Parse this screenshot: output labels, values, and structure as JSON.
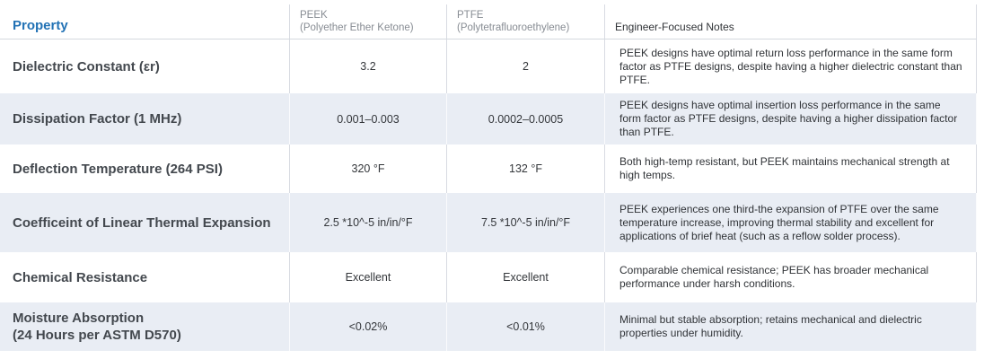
{
  "accent_color": "#2272b5",
  "stripe_color": "#e9edf4",
  "table": {
    "columns": [
      {
        "label": "Property"
      },
      {
        "label": "PEEK",
        "sublabel": "(Polyether Ether Ketone)"
      },
      {
        "label": "PTFE",
        "sublabel": "(Polytetrafluoroethylene)"
      },
      {
        "label": "Engineer-Focused Notes"
      }
    ],
    "rows": [
      {
        "property": "Dielectric Constant (εr)",
        "peek": "3.2",
        "ptfe": "2",
        "notes": "PEEK designs have optimal return loss performance in the same form factor as PTFE designs, despite having a higher dielectric constant than PTFE."
      },
      {
        "property": "Dissipation Factor (1 MHz)",
        "peek": "0.001–0.003",
        "ptfe": "0.0002–0.0005",
        "notes": "PEEK designs have optimal insertion loss performance in the same form factor as PTFE designs, despite having a higher dissipation factor than PTFE."
      },
      {
        "property": "Deflection Temperature (264 PSI)",
        "peek": "320 °F",
        "ptfe": "132 °F",
        "notes": "Both high-temp resistant, but PEEK maintains mechanical strength at high temps."
      },
      {
        "property": "Coefficeint of Linear Thermal Expansion",
        "peek": "2.5 *10^-5 in/in/°F",
        "ptfe": "7.5 *10^-5 in/in/°F",
        "notes": "PEEK experiences one third-the expansion of PTFE over the same temperature increase, improving thermal stability and excellent for applications of brief heat (such as a reflow solder process)."
      },
      {
        "property": "Chemical Resistance",
        "peek": "Excellent",
        "ptfe": "Excellent",
        "notes": "Comparable chemical resistance; PEEK has broader mechanical performance under harsh conditions."
      },
      {
        "property": "Moisture Absorption",
        "property_line2": "(24 Hours per ASTM D570)",
        "peek": "<0.02%",
        "ptfe": "<0.01%",
        "notes": "Minimal but stable absorption; retains mechanical and dielectric properties under humidity."
      }
    ]
  }
}
